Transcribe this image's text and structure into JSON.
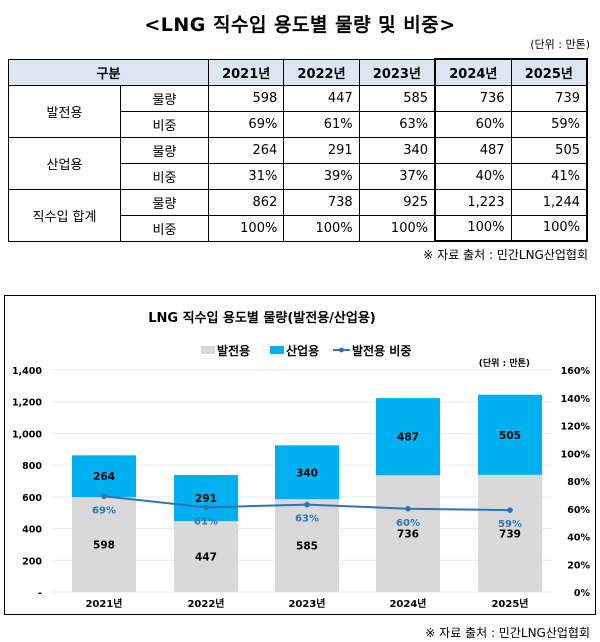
{
  "title": "<LNG 직수입 용도별 물량 및 비중>",
  "unit": "(단위 : 만톤)",
  "table": {
    "header": {
      "category": "구분",
      "years": [
        "2021년",
        "2022년",
        "2023년",
        "2024년",
        "2025년"
      ]
    },
    "groups": [
      {
        "name": "발전용",
        "rows": [
          {
            "label": "물량",
            "values": [
              "598",
              "447",
              "585",
              "736",
              "739"
            ]
          },
          {
            "label": "비중",
            "values": [
              "69%",
              "61%",
              "63%",
              "60%",
              "59%"
            ]
          }
        ]
      },
      {
        "name": "산업용",
        "rows": [
          {
            "label": "물량",
            "values": [
              "264",
              "291",
              "340",
              "487",
              "505"
            ]
          },
          {
            "label": "비중",
            "values": [
              "31%",
              "39%",
              "37%",
              "40%",
              "41%"
            ]
          }
        ]
      },
      {
        "name": "직수입 합계",
        "rows": [
          {
            "label": "물량",
            "values": [
              "862",
              "738",
              "925",
              "1,223",
              "1,244"
            ]
          },
          {
            "label": "비중",
            "values": [
              "100%",
              "100%",
              "100%",
              "100%",
              "100%"
            ]
          }
        ]
      }
    ]
  },
  "source": "※ 자료 출처 : 민간LNG산업협회",
  "chart_data": {
    "type": "bar",
    "title": "LNG 직수입 용도별 물량(발전용/산업용)",
    "unit": "(단위 : 만톤)",
    "categories": [
      "2021년",
      "2022년",
      "2023년",
      "2024년",
      "2025년"
    ],
    "series": [
      {
        "name": "발전용",
        "type": "stacked-bar",
        "color": "#d9d9d9",
        "values": [
          598,
          447,
          585,
          736,
          739
        ]
      },
      {
        "name": "산업용",
        "type": "stacked-bar",
        "color": "#00b0f0",
        "values": [
          264,
          291,
          340,
          487,
          505
        ]
      },
      {
        "name": "발전용 비중",
        "type": "line",
        "axis": "right",
        "color": "#2e75b6",
        "values": [
          69,
          61,
          63,
          60,
          59
        ],
        "labels": [
          "69%",
          "61%",
          "63%",
          "60%",
          "59%"
        ]
      }
    ],
    "ylim": [
      0,
      1400
    ],
    "yticks": [
      "-",
      "200",
      "400",
      "600",
      "800",
      "1,000",
      "1,200",
      "1,400"
    ],
    "y2lim": [
      0,
      160
    ],
    "y2ticks": [
      "0%",
      "20%",
      "40%",
      "60%",
      "80%",
      "100%",
      "120%",
      "140%",
      "160%"
    ],
    "legend": "top-center",
    "grid": true
  }
}
